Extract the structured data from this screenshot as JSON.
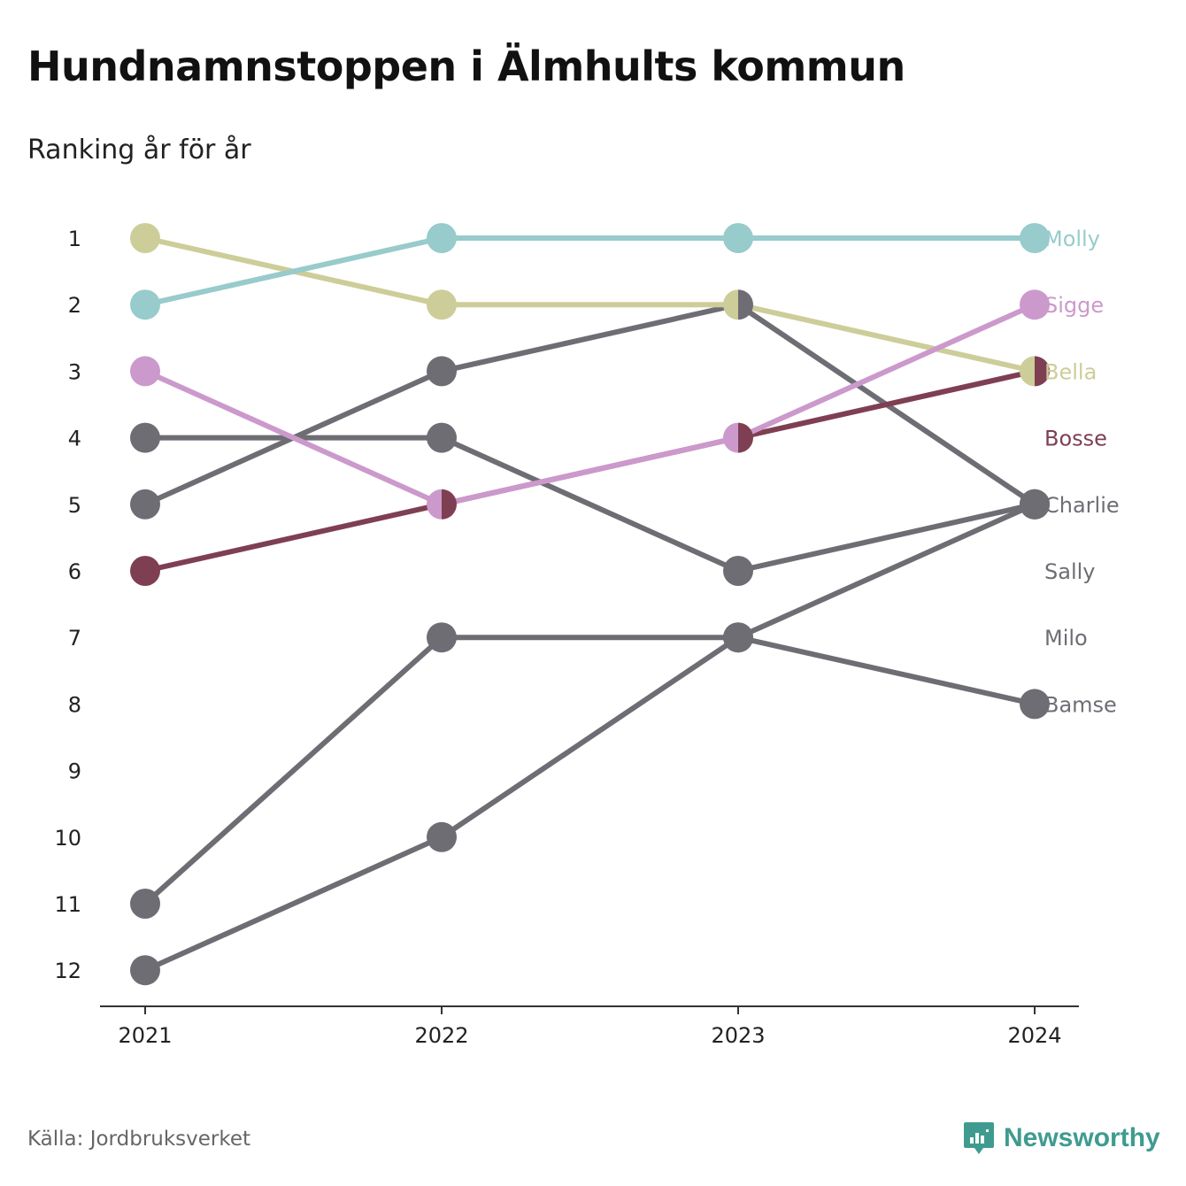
{
  "title": "Hundnamnstoppen i Älmhults kommun",
  "subtitle": "Ranking år för år",
  "source": "Källa: Jordbruksverket",
  "brand": "Newsworthy",
  "brand_icon": "bar-chart-speech-bubble-icon",
  "colors": {
    "Molly": "#98cbcb",
    "Sigge": "#cc99cc",
    "Bella": "#cdcd99",
    "Bosse": "#7f3f52",
    "Charlie": "#6e6d74",
    "Sally": "#6e6d74",
    "Milo": "#6e6d74",
    "Bamse": "#6e6d74",
    "axis": "#333333",
    "brand": "#3f9b8f"
  },
  "chart_data": {
    "type": "line",
    "x": [
      "2021",
      "2022",
      "2023",
      "2024"
    ],
    "y_ticks": [
      1,
      2,
      3,
      4,
      5,
      6,
      7,
      8,
      9,
      10,
      11,
      12
    ],
    "y_reversed": true,
    "grid": false,
    "legend": "labels at line ends (right)",
    "series": [
      {
        "name": "Charlie",
        "values": [
          5,
          3,
          2,
          5
        ]
      },
      {
        "name": "Sally",
        "values": [
          4,
          4,
          6,
          5
        ]
      },
      {
        "name": "Milo",
        "values": [
          12,
          10,
          7,
          5
        ]
      },
      {
        "name": "Bamse",
        "values": [
          11,
          7,
          7,
          8
        ]
      },
      {
        "name": "Bosse",
        "values": [
          6,
          5,
          4,
          3
        ]
      },
      {
        "name": "Bella",
        "values": [
          1,
          2,
          2,
          3
        ]
      },
      {
        "name": "Sigge",
        "values": [
          3,
          5,
          4,
          2
        ]
      },
      {
        "name": "Molly",
        "values": [
          2,
          1,
          1,
          1
        ]
      }
    ],
    "end_label_order": [
      "Molly",
      "Sigge",
      "Bella",
      "Bosse",
      "Charlie",
      "Sally",
      "Milo",
      "Bamse"
    ]
  }
}
